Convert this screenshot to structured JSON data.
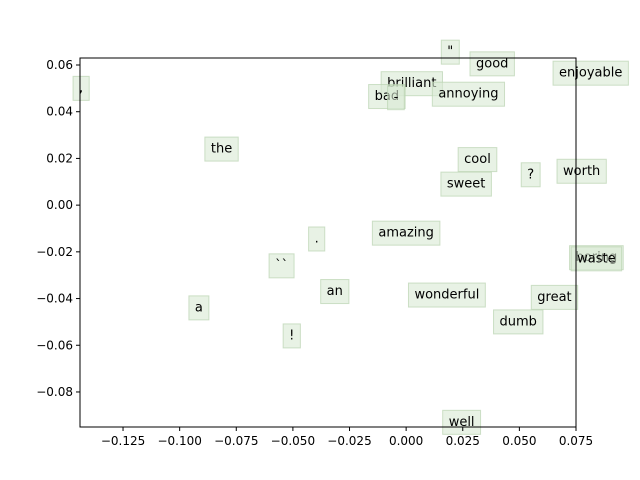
{
  "chart_data": {
    "type": "scatter",
    "title": "",
    "xlabel": "",
    "ylabel": "",
    "xlim": [
      -0.144,
      0.075
    ],
    "ylim": [
      -0.095,
      0.063
    ],
    "grid": false,
    "x_ticks": [
      -0.125,
      -0.1,
      -0.075,
      -0.05,
      -0.025,
      0.0,
      0.025,
      0.05,
      0.075
    ],
    "x_tick_labels": [
      "−0.125",
      "−0.100",
      "−0.075",
      "−0.050",
      "−0.025",
      "0.000",
      "0.025",
      "0.050",
      "0.075"
    ],
    "y_ticks": [
      0.06,
      0.04,
      0.02,
      0.0,
      -0.02,
      -0.04,
      -0.06,
      -0.08
    ],
    "y_tick_labels": [
      "0.06",
      "0.04",
      "0.02",
      "0.00",
      "−0.02",
      "−0.04",
      "−0.06",
      "−0.08"
    ],
    "label_box_color": "#d9ead3",
    "label_box_border": "#b9d3b0",
    "points": [
      {
        "label": "\"",
        "x": 0.0195,
        "y": 0.0655
      },
      {
        "label": "good",
        "x": 0.038,
        "y": 0.0605
      },
      {
        "label": "enjoyable",
        "x": 0.0815,
        "y": 0.0565
      },
      {
        "label": ",",
        "x": -0.1435,
        "y": 0.05
      },
      {
        "label": "brilliant",
        "x": 0.0025,
        "y": 0.052
      },
      {
        "label": "bad",
        "x": -0.0085,
        "y": 0.0465
      },
      {
        "label": "-",
        "x": -0.0045,
        "y": 0.046
      },
      {
        "label": "annoying",
        "x": 0.0275,
        "y": 0.0475
      },
      {
        "label": "the",
        "x": -0.0815,
        "y": 0.024
      },
      {
        "label": "cool",
        "x": 0.0315,
        "y": 0.0195
      },
      {
        "label": "worth",
        "x": 0.0775,
        "y": 0.0145
      },
      {
        "label": "?",
        "x": 0.055,
        "y": 0.013
      },
      {
        "label": "sweet",
        "x": 0.0265,
        "y": 0.009
      },
      {
        "label": ".",
        "x": -0.0395,
        "y": -0.0145
      },
      {
        "label": "amazing",
        "x": 0.0,
        "y": -0.012
      },
      {
        "label": "boring",
        "x": 0.084,
        "y": -0.0225
      },
      {
        "label": "waste",
        "x": 0.084,
        "y": -0.023
      },
      {
        "label": "``",
        "x": -0.055,
        "y": -0.026
      },
      {
        "label": "an",
        "x": -0.0315,
        "y": -0.037
      },
      {
        "label": "wonderful",
        "x": 0.018,
        "y": -0.0385
      },
      {
        "label": "great",
        "x": 0.0655,
        "y": -0.0395
      },
      {
        "label": "a",
        "x": -0.0915,
        "y": -0.044
      },
      {
        "label": "dumb",
        "x": 0.0495,
        "y": -0.05
      },
      {
        "label": "!",
        "x": -0.0505,
        "y": -0.056
      },
      {
        "label": "well",
        "x": 0.0245,
        "y": -0.093
      }
    ]
  }
}
